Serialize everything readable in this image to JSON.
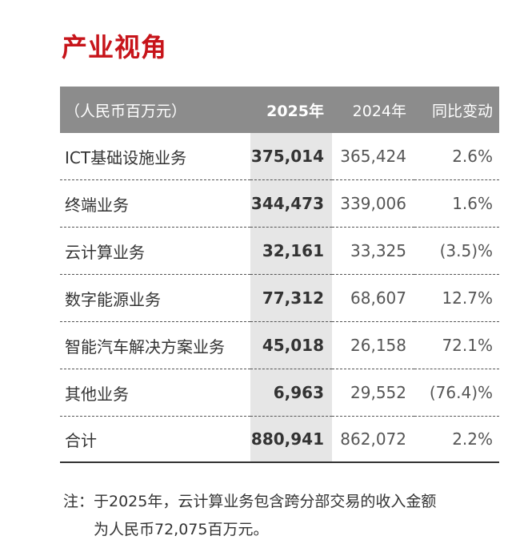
{
  "title": "产业视角",
  "header": {
    "unit": "（人民币百万元）",
    "y2025": "2025年",
    "y2024": "2024年",
    "change": "同比变动"
  },
  "rows": [
    {
      "label": "ICT基础设施业务",
      "v2025": "375,014",
      "v2024": "365,424",
      "change": "2.6%"
    },
    {
      "label": "终端业务",
      "v2025": "344,473",
      "v2024": "339,006",
      "change": "1.6%"
    },
    {
      "label": "云计算业务",
      "v2025": "32,161",
      "v2024": "33,325",
      "change": "(3.5)%"
    },
    {
      "label": "数字能源业务",
      "v2025": "77,312",
      "v2024": "68,607",
      "change": "12.7%"
    },
    {
      "label": "智能汽车解决方案业务",
      "v2025": "45,018",
      "v2024": "26,158",
      "change": "72.1%"
    },
    {
      "label": "其他业务",
      "v2025": "6,963",
      "v2024": "29,552",
      "change": "(76.4)%"
    },
    {
      "label": "合计",
      "v2025": "880,941",
      "v2024": "862,072",
      "change": "2.2%"
    }
  ],
  "note": {
    "line1": "注：于2025年，云计算业务包含跨分部交易的收入金额",
    "line2": "为人民币72,075百万元。"
  },
  "colors": {
    "title": "#c7141a",
    "header_bg": "#8c8c8c",
    "highlight_col": "#e6e6e6"
  }
}
